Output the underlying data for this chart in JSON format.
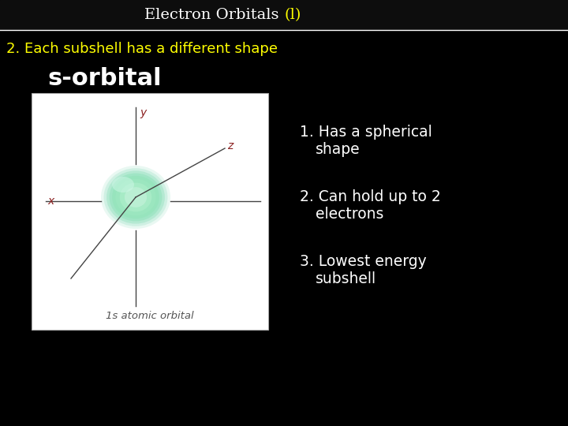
{
  "background_color": "#000000",
  "title_part1": "Electron Orbitals ",
  "title_part2": "(l)",
  "title_color": "#ffffff",
  "title_highlight_color": "#ffff00",
  "header_line_color": "#ffffff",
  "subtitle_color": "#ffff00",
  "subtitle": "2. Each subshell has a different shape",
  "orbital_label": "s-orbital",
  "orbital_label_color": "#ffffff",
  "image_caption": "1s atomic orbital",
  "image_bg": "#ffffff",
  "point1_line1": "1. Has a spherical",
  "point1_line2": "   shape",
  "point2_line1": "2. Can hold up to 2",
  "point2_line2": "   electrons",
  "point3_line1": "3. Lowest energy",
  "point3_line2": "   subshell",
  "points_color": "#ffffff",
  "axis_label_color": "#8b2020",
  "axis_line_color": "#444444",
  "sphere_color": "#7ed8b0",
  "sphere_edge_color": "#5bbf95"
}
